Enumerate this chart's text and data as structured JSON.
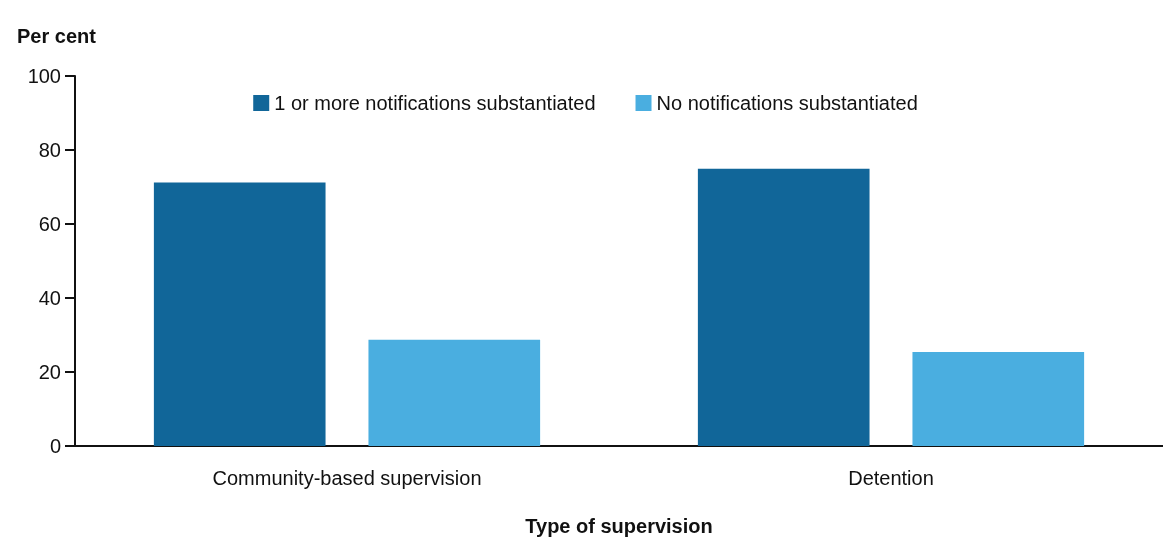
{
  "chart_data": {
    "type": "bar",
    "xlabel": "Type of supervision",
    "ylabel": "Per cent",
    "categories": [
      "Community-based supervision",
      "Detention"
    ],
    "series": [
      {
        "name": "1 or more notifications substantiated",
        "color": "#116699",
        "values": [
          71.2,
          74.9
        ]
      },
      {
        "name": "No notifications substantiated",
        "color": "#4aaee0",
        "values": [
          28.7,
          25.4
        ]
      }
    ],
    "ylim": [
      0,
      100
    ],
    "yticks": [
      0,
      20,
      40,
      60,
      80,
      100
    ],
    "grid": false,
    "legend": "top"
  }
}
